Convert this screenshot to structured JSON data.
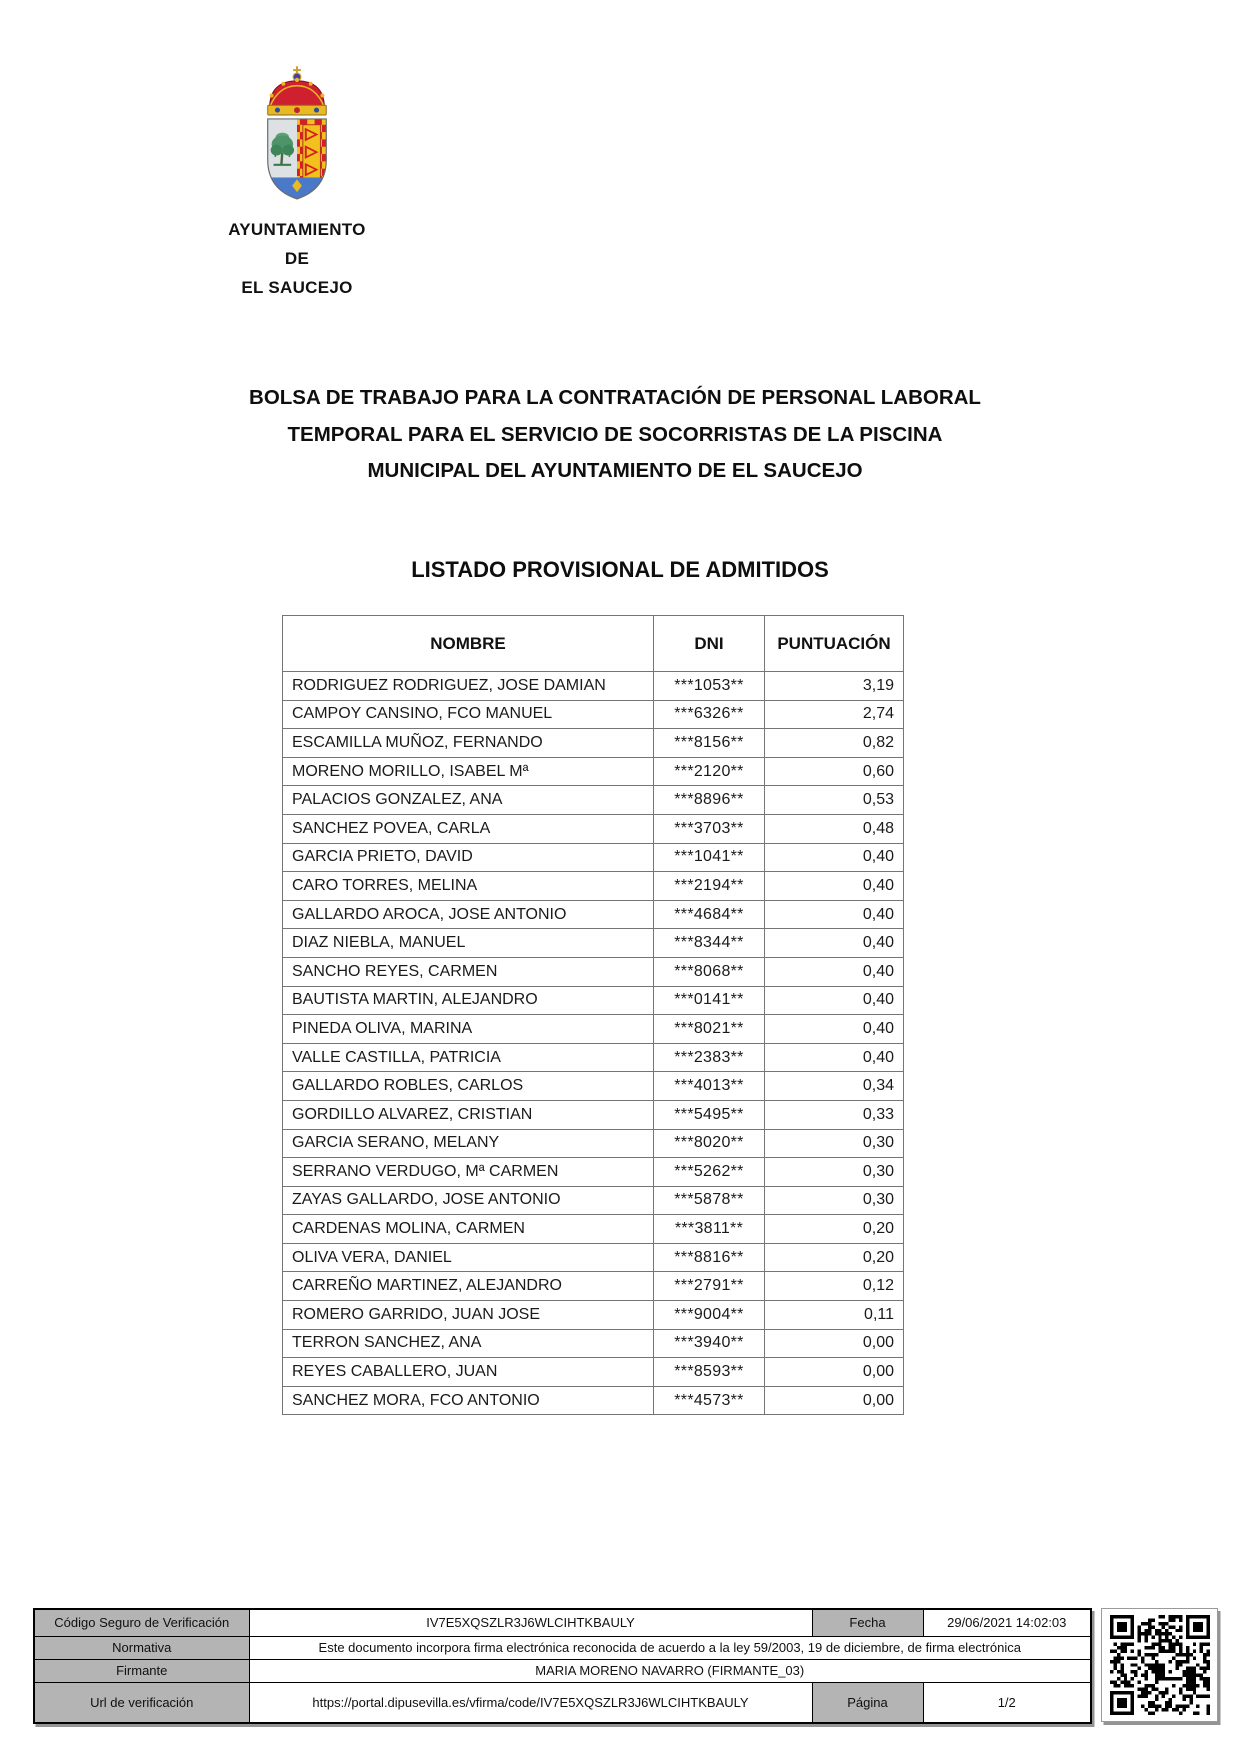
{
  "header": {
    "crest_icon": "town-coat-of-arms",
    "org_lines": [
      "AYUNTAMIENTO",
      "DE",
      "EL SAUCEJO"
    ]
  },
  "title_lines": [
    "BOLSA DE TRABAJO PARA LA CONTRATACIÓN DE PERSONAL LABORAL",
    "TEMPORAL PARA EL SERVICIO DE SOCORRISTAS DE LA PISCINA",
    "MUNICIPAL DEL AYUNTAMIENTO DE EL SAUCEJO"
  ],
  "subtitle": "LISTADO PROVISIONAL DE ADMITIDOS",
  "table": {
    "headers": [
      "NOMBRE",
      "DNI",
      "PUNTUACIÓN"
    ],
    "rows": [
      {
        "nombre": "RODRIGUEZ RODRIGUEZ, JOSE DAMIAN",
        "dni": "***1053**",
        "puntuacion": "3,19"
      },
      {
        "nombre": "CAMPOY CANSINO, FCO MANUEL",
        "dni": "***6326**",
        "puntuacion": "2,74"
      },
      {
        "nombre": "ESCAMILLA MUÑOZ, FERNANDO",
        "dni": "***8156**",
        "puntuacion": "0,82"
      },
      {
        "nombre": "MORENO MORILLO, ISABEL Mª",
        "dni": "***2120**",
        "puntuacion": "0,60"
      },
      {
        "nombre": "PALACIOS GONZALEZ, ANA",
        "dni": "***8896**",
        "puntuacion": "0,53"
      },
      {
        "nombre": "SANCHEZ POVEA, CARLA",
        "dni": "***3703**",
        "puntuacion": "0,48"
      },
      {
        "nombre": "GARCIA PRIETO, DAVID",
        "dni": "***1041**",
        "puntuacion": "0,40"
      },
      {
        "nombre": "CARO TORRES, MELINA",
        "dni": "***2194**",
        "puntuacion": "0,40"
      },
      {
        "nombre": "GALLARDO AROCA, JOSE ANTONIO",
        "dni": "***4684**",
        "puntuacion": "0,40"
      },
      {
        "nombre": "DIAZ NIEBLA, MANUEL",
        "dni": "***8344**",
        "puntuacion": "0,40"
      },
      {
        "nombre": "SANCHO REYES, CARMEN",
        "dni": "***8068**",
        "puntuacion": "0,40"
      },
      {
        "nombre": "BAUTISTA MARTIN, ALEJANDRO",
        "dni": "***0141**",
        "puntuacion": "0,40"
      },
      {
        "nombre": "PINEDA OLIVA, MARINA",
        "dni": "***8021**",
        "puntuacion": "0,40"
      },
      {
        "nombre": "VALLE CASTILLA, PATRICIA",
        "dni": "***2383**",
        "puntuacion": "0,40"
      },
      {
        "nombre": "GALLARDO ROBLES, CARLOS",
        "dni": "***4013**",
        "puntuacion": "0,34"
      },
      {
        "nombre": "GORDILLO ALVAREZ, CRISTIAN",
        "dni": "***5495**",
        "puntuacion": "0,33"
      },
      {
        "nombre": "GARCIA SERANO, MELANY",
        "dni": "***8020**",
        "puntuacion": "0,30"
      },
      {
        "nombre": "SERRANO VERDUGO, Mª CARMEN",
        "dni": "***5262**",
        "puntuacion": "0,30"
      },
      {
        "nombre": "ZAYAS GALLARDO, JOSE ANTONIO",
        "dni": "***5878**",
        "puntuacion": "0,30"
      },
      {
        "nombre": "CARDENAS MOLINA, CARMEN",
        "dni": "***3811**",
        "puntuacion": "0,20"
      },
      {
        "nombre": "OLIVA VERA, DANIEL",
        "dni": "***8816**",
        "puntuacion": "0,20"
      },
      {
        "nombre": "CARREÑO MARTINEZ, ALEJANDRO",
        "dni": "***2791**",
        "puntuacion": "0,12"
      },
      {
        "nombre": "ROMERO GARRIDO, JUAN JOSE",
        "dni": "***9004**",
        "puntuacion": "0,11"
      },
      {
        "nombre": "TERRON SANCHEZ, ANA",
        "dni": "***3940**",
        "puntuacion": "0,00"
      },
      {
        "nombre": "REYES CABALLERO, JUAN",
        "dni": "***8593**",
        "puntuacion": "0,00"
      },
      {
        "nombre": "SANCHEZ MORA, FCO ANTONIO",
        "dni": "***4573**",
        "puntuacion": "0,00"
      }
    ]
  },
  "footer": {
    "csv_label": "Código Seguro de Verificación",
    "csv_value": "IV7E5XQSZLR3J6WLCIHTKBAULY",
    "fecha_label": "Fecha",
    "fecha_value": "29/06/2021 14:02:03",
    "normativa_label": "Normativa",
    "normativa_value": "Este documento incorpora firma electrónica reconocida de acuerdo a la ley 59/2003, 19 de diciembre, de firma electrónica",
    "firmante_label": "Firmante",
    "firmante_value": "MARIA MORENO NAVARRO (FIRMANTE_03)",
    "url_label": "Url de verificación",
    "url_value": "https://portal.dipusevilla.es/vfirma/code/IV7E5XQSZLR3J6WLCIHTKBAULY",
    "pagina_label": "Página",
    "pagina_value": "1/2",
    "qr_icon": "qr-code"
  },
  "colors": {
    "footer_label_bg": "#b4b4b4",
    "crest_red": "#cf2030",
    "crest_gold": "#e8b923",
    "crest_blue": "#4a79c9",
    "crest_green": "#4e9468",
    "crest_silver": "#dde1e4"
  }
}
